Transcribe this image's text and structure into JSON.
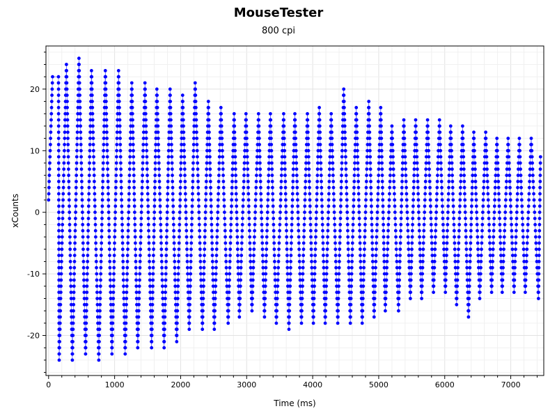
{
  "chart_data": {
    "type": "line",
    "title": "MouseTester",
    "subtitle": "800 cpi",
    "xlabel": "Time (ms)",
    "ylabel": "xCounts",
    "xlim": [
      -40,
      7500
    ],
    "ylim": [
      -26.5,
      27
    ],
    "xticks": [
      0,
      1000,
      2000,
      3000,
      4000,
      5000,
      6000,
      7000
    ],
    "yticks": [
      -20,
      -10,
      0,
      10,
      20
    ],
    "grid": true,
    "legend": "none",
    "marker_color": "#0000ff",
    "series": [
      {
        "peaks": [
          [
            0,
            2
          ],
          [
            60,
            22
          ],
          [
            150,
            22
          ],
          [
            160,
            -24
          ],
          [
            270,
            24
          ],
          [
            360,
            -24
          ],
          [
            460,
            25
          ],
          [
            560,
            -23
          ],
          [
            650,
            23
          ],
          [
            760,
            -24
          ],
          [
            860,
            23
          ],
          [
            960,
            -23
          ],
          [
            1060,
            23
          ],
          [
            1160,
            -23
          ],
          [
            1260,
            21
          ],
          [
            1350,
            -22
          ],
          [
            1460,
            21
          ],
          [
            1560,
            -22
          ],
          [
            1640,
            20
          ],
          [
            1750,
            -22
          ],
          [
            1840,
            20
          ],
          [
            1940,
            -21
          ],
          [
            2030,
            19
          ],
          [
            2130,
            -19
          ],
          [
            2220,
            21
          ],
          [
            2330,
            -19
          ],
          [
            2420,
            18
          ],
          [
            2510,
            -19
          ],
          [
            2610,
            17
          ],
          [
            2720,
            -18
          ],
          [
            2810,
            16
          ],
          [
            2890,
            -17
          ],
          [
            2990,
            16
          ],
          [
            3080,
            -16
          ],
          [
            3180,
            16
          ],
          [
            3270,
            -17
          ],
          [
            3360,
            16
          ],
          [
            3450,
            -18
          ],
          [
            3560,
            16
          ],
          [
            3640,
            -19
          ],
          [
            3730,
            16
          ],
          [
            3830,
            -18
          ],
          [
            3920,
            16
          ],
          [
            4010,
            -18
          ],
          [
            4100,
            17
          ],
          [
            4190,
            -18
          ],
          [
            4280,
            16
          ],
          [
            4380,
            -18
          ],
          [
            4470,
            20
          ],
          [
            4570,
            -18
          ],
          [
            4660,
            17
          ],
          [
            4750,
            -18
          ],
          [
            4850,
            18
          ],
          [
            4930,
            -17
          ],
          [
            5030,
            17
          ],
          [
            5100,
            -16
          ],
          [
            5200,
            14
          ],
          [
            5300,
            -16
          ],
          [
            5380,
            15
          ],
          [
            5480,
            -14
          ],
          [
            5560,
            15
          ],
          [
            5650,
            -14
          ],
          [
            5740,
            15
          ],
          [
            5830,
            -13
          ],
          [
            5920,
            15
          ],
          [
            6010,
            -13
          ],
          [
            6090,
            14
          ],
          [
            6180,
            -15
          ],
          [
            6270,
            14
          ],
          [
            6360,
            -17
          ],
          [
            6440,
            13
          ],
          [
            6530,
            -14
          ],
          [
            6620,
            13
          ],
          [
            6710,
            -13
          ],
          [
            6790,
            12
          ],
          [
            6870,
            -13
          ],
          [
            6960,
            12
          ],
          [
            7050,
            -13
          ],
          [
            7130,
            12
          ],
          [
            7220,
            -13
          ],
          [
            7310,
            12
          ],
          [
            7420,
            -14
          ],
          [
            7450,
            9
          ]
        ]
      }
    ]
  }
}
